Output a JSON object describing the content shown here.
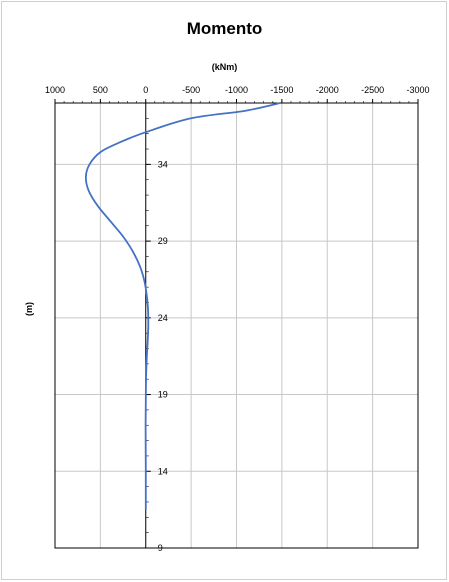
{
  "chart_data": {
    "type": "line",
    "title": "Momento",
    "xlabel": "(kNm)",
    "ylabel": "(m)",
    "x_axis_reversed": true,
    "xlim": [
      1000,
      -3000
    ],
    "ylim": [
      9,
      38
    ],
    "x_ticks": [
      "1000",
      "500",
      "0",
      "-500",
      "-1000",
      "-1500",
      "-2000",
      "-2500",
      "-3000"
    ],
    "y_ticks": [
      "9",
      "14",
      "19",
      "24",
      "29",
      "34"
    ],
    "grid": true,
    "series": [
      {
        "color": "#4472c4",
        "points": [
          {
            "x": -1480,
            "y": 38.0
          },
          {
            "x": -1100,
            "y": 37.5
          },
          {
            "x": -500,
            "y": 37.0
          },
          {
            "x": 0,
            "y": 36.1
          },
          {
            "x": 300,
            "y": 35.4
          },
          {
            "x": 500,
            "y": 34.8
          },
          {
            "x": 620,
            "y": 34.0
          },
          {
            "x": 660,
            "y": 33.2
          },
          {
            "x": 630,
            "y": 32.3
          },
          {
            "x": 530,
            "y": 31.3
          },
          {
            "x": 390,
            "y": 30.3
          },
          {
            "x": 250,
            "y": 29.3
          },
          {
            "x": 140,
            "y": 28.3
          },
          {
            "x": 60,
            "y": 27.3
          },
          {
            "x": 15,
            "y": 26.4
          },
          {
            "x": -10,
            "y": 25.5
          },
          {
            "x": -25,
            "y": 24.6
          },
          {
            "x": -28,
            "y": 23.5
          },
          {
            "x": -22,
            "y": 22.5
          },
          {
            "x": -10,
            "y": 21.3
          },
          {
            "x": -3,
            "y": 20.0
          },
          {
            "x": 0,
            "y": 18.5
          },
          {
            "x": 2,
            "y": 17.0
          },
          {
            "x": 1,
            "y": 15.5
          },
          {
            "x": 0,
            "y": 14.0
          },
          {
            "x": 0,
            "y": 12.5
          },
          {
            "x": 0,
            "y": 11.5
          }
        ]
      }
    ]
  }
}
